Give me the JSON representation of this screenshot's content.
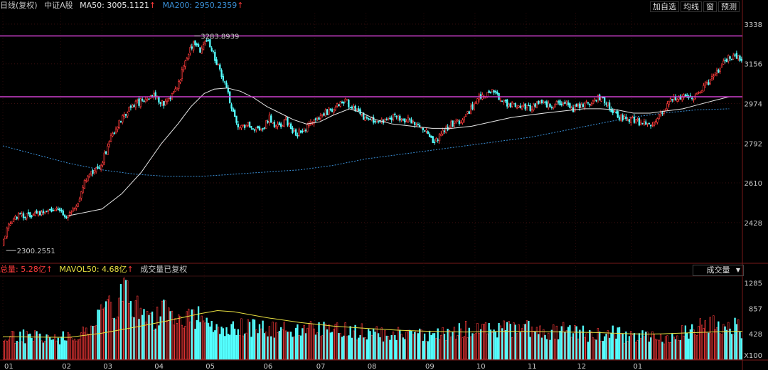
{
  "header": {
    "period_label": "日线(复权)",
    "index_label": "中证A股",
    "ma50_label": "MA50: 3005.1121",
    "ma50_arrow": "↑",
    "ma200_label": "MA200: 2950.2359",
    "ma200_arrow": "↑"
  },
  "toolbar": [
    "加自选",
    "均线",
    "窗",
    "预测"
  ],
  "volume_header": {
    "total_label": "总量: 5.28亿",
    "total_arrow": "↑",
    "mavol_label": "MAVOL50: 4.68亿",
    "mavol_arrow": "↑",
    "note": "成交量已复权",
    "dropdown": "成交量"
  },
  "annotations": {
    "high_label": "3283.8939",
    "low_label": "2300.2551"
  },
  "colors": {
    "up": "#ff3b3b",
    "down": "#54ffff",
    "ma50": "#e6e6e6",
    "ma200": "#3a8fd6",
    "level": "#d040d0",
    "mavol": "#e8e040"
  },
  "chart_data": [
    {
      "type": "candlestick",
      "title": "",
      "y_ticks": [
        3338,
        3156,
        2974,
        2792,
        2610,
        2428
      ],
      "ylim": [
        2248,
        3390
      ],
      "x_tick_labels": [
        "01",
        "02",
        "03",
        "04",
        "05",
        "06",
        "07",
        "08",
        "09",
        "10",
        "11",
        "12",
        "01"
      ],
      "horizontal_levels": [
        3283.89,
        3005.11
      ],
      "price_path": [
        [
          0,
          2330
        ],
        [
          4,
          2420
        ],
        [
          10,
          2460
        ],
        [
          20,
          2470
        ],
        [
          30,
          2490
        ],
        [
          40,
          2460
        ],
        [
          44,
          2490
        ],
        [
          52,
          2650
        ],
        [
          60,
          2690
        ],
        [
          66,
          2820
        ],
        [
          72,
          2900
        ],
        [
          78,
          2960
        ],
        [
          86,
          2990
        ],
        [
          92,
          3010
        ],
        [
          98,
          2970
        ],
        [
          106,
          3050
        ],
        [
          112,
          3180
        ],
        [
          116,
          3260
        ],
        [
          120,
          3220
        ],
        [
          124,
          3270
        ],
        [
          128,
          3200
        ],
        [
          132,
          3130
        ],
        [
          136,
          3040
        ],
        [
          140,
          2940
        ],
        [
          144,
          2860
        ],
        [
          150,
          2880
        ],
        [
          156,
          2840
        ],
        [
          162,
          2910
        ],
        [
          166,
          2860
        ],
        [
          172,
          2900
        ],
        [
          178,
          2830
        ],
        [
          184,
          2860
        ],
        [
          190,
          2890
        ],
        [
          196,
          2930
        ],
        [
          202,
          2960
        ],
        [
          208,
          2990
        ],
        [
          214,
          2940
        ],
        [
          220,
          2910
        ],
        [
          226,
          2890
        ],
        [
          232,
          2890
        ],
        [
          238,
          2920
        ],
        [
          244,
          2900
        ],
        [
          252,
          2880
        ],
        [
          258,
          2830
        ],
        [
          262,
          2790
        ],
        [
          266,
          2830
        ],
        [
          272,
          2880
        ],
        [
          278,
          2900
        ],
        [
          284,
          2950
        ],
        [
          290,
          3010
        ],
        [
          296,
          3030
        ],
        [
          302,
          3000
        ],
        [
          306,
          2970
        ],
        [
          312,
          2960
        ],
        [
          320,
          2950
        ],
        [
          326,
          2990
        ],
        [
          332,
          2960
        ],
        [
          340,
          2980
        ],
        [
          346,
          2950
        ],
        [
          352,
          2960
        ],
        [
          358,
          2990
        ],
        [
          364,
          3000
        ],
        [
          370,
          2930
        ],
        [
          376,
          2910
        ],
        [
          382,
          2900
        ],
        [
          388,
          2880
        ],
        [
          394,
          2870
        ],
        [
          400,
          2940
        ],
        [
          406,
          2990
        ],
        [
          412,
          3010
        ],
        [
          418,
          3000
        ],
        [
          424,
          3040
        ],
        [
          430,
          3090
        ],
        [
          436,
          3150
        ],
        [
          440,
          3180
        ],
        [
          444,
          3200
        ],
        [
          448,
          3180
        ]
      ],
      "ma50_path": [
        [
          40,
          2460
        ],
        [
          60,
          2490
        ],
        [
          72,
          2560
        ],
        [
          84,
          2660
        ],
        [
          96,
          2790
        ],
        [
          106,
          2880
        ],
        [
          114,
          2960
        ],
        [
          122,
          3020
        ],
        [
          128,
          3040
        ],
        [
          136,
          3045
        ],
        [
          144,
          3030
        ],
        [
          152,
          3000
        ],
        [
          160,
          2960
        ],
        [
          168,
          2930
        ],
        [
          176,
          2900
        ],
        [
          184,
          2880
        ],
        [
          192,
          2890
        ],
        [
          200,
          2920
        ],
        [
          210,
          2950
        ],
        [
          218,
          2930
        ],
        [
          226,
          2900
        ],
        [
          236,
          2880
        ],
        [
          248,
          2870
        ],
        [
          260,
          2860
        ],
        [
          272,
          2860
        ],
        [
          284,
          2870
        ],
        [
          296,
          2890
        ],
        [
          308,
          2910
        ],
        [
          318,
          2920
        ],
        [
          328,
          2930
        ],
        [
          340,
          2940
        ],
        [
          352,
          2950
        ],
        [
          362,
          2950
        ],
        [
          372,
          2945
        ],
        [
          382,
          2930
        ],
        [
          392,
          2930
        ],
        [
          402,
          2940
        ],
        [
          412,
          2950
        ],
        [
          422,
          2970
        ],
        [
          432,
          2990
        ],
        [
          440,
          3005
        ]
      ],
      "ma200_path": [
        [
          0,
          2780
        ],
        [
          20,
          2740
        ],
        [
          40,
          2700
        ],
        [
          60,
          2670
        ],
        [
          80,
          2650
        ],
        [
          100,
          2640
        ],
        [
          120,
          2640
        ],
        [
          140,
          2650
        ],
        [
          160,
          2660
        ],
        [
          180,
          2670
        ],
        [
          200,
          2690
        ],
        [
          220,
          2720
        ],
        [
          240,
          2740
        ],
        [
          260,
          2760
        ],
        [
          280,
          2780
        ],
        [
          300,
          2800
        ],
        [
          320,
          2820
        ],
        [
          340,
          2850
        ],
        [
          360,
          2880
        ],
        [
          380,
          2910
        ],
        [
          400,
          2930
        ],
        [
          420,
          2945
        ],
        [
          440,
          2950
        ]
      ]
    },
    {
      "type": "bar",
      "title": "",
      "y_ticks": [
        1285,
        857,
        428
      ],
      "y_unit_label": "X100",
      "ylim": [
        0,
        1400
      ],
      "volume_path": [
        [
          0,
          380
        ],
        [
          20,
          420
        ],
        [
          30,
          360
        ],
        [
          44,
          420
        ],
        [
          56,
          560
        ],
        [
          60,
          1100
        ],
        [
          66,
          900
        ],
        [
          72,
          1200
        ],
        [
          80,
          900
        ],
        [
          90,
          700
        ],
        [
          100,
          850
        ],
        [
          108,
          700
        ],
        [
          116,
          780
        ],
        [
          124,
          620
        ],
        [
          132,
          600
        ],
        [
          140,
          560
        ],
        [
          150,
          560
        ],
        [
          160,
          500
        ],
        [
          170,
          560
        ],
        [
          180,
          480
        ],
        [
          190,
          540
        ],
        [
          200,
          520
        ],
        [
          210,
          500
        ],
        [
          220,
          480
        ],
        [
          230,
          420
        ],
        [
          240,
          440
        ],
        [
          250,
          420
        ],
        [
          260,
          400
        ],
        [
          270,
          460
        ],
        [
          280,
          540
        ],
        [
          290,
          520
        ],
        [
          300,
          540
        ],
        [
          310,
          560
        ],
        [
          320,
          520
        ],
        [
          330,
          480
        ],
        [
          340,
          520
        ],
        [
          350,
          460
        ],
        [
          360,
          420
        ],
        [
          370,
          460
        ],
        [
          380,
          380
        ],
        [
          390,
          420
        ],
        [
          400,
          360
        ],
        [
          410,
          440
        ],
        [
          420,
          600
        ],
        [
          430,
          640
        ],
        [
          440,
          580
        ],
        [
          448,
          520
        ]
      ],
      "mavol_path": [
        [
          0,
          380
        ],
        [
          40,
          370
        ],
        [
          60,
          440
        ],
        [
          80,
          540
        ],
        [
          100,
          650
        ],
        [
          120,
          770
        ],
        [
          130,
          820
        ],
        [
          140,
          800
        ],
        [
          160,
          700
        ],
        [
          180,
          620
        ],
        [
          200,
          560
        ],
        [
          220,
          520
        ],
        [
          240,
          490
        ],
        [
          260,
          470
        ],
        [
          280,
          460
        ],
        [
          300,
          470
        ],
        [
          320,
          470
        ],
        [
          340,
          460
        ],
        [
          360,
          450
        ],
        [
          380,
          430
        ],
        [
          390,
          425
        ],
        [
          400,
          430
        ],
        [
          420,
          450
        ],
        [
          440,
          470
        ],
        [
          448,
          472
        ]
      ]
    }
  ]
}
